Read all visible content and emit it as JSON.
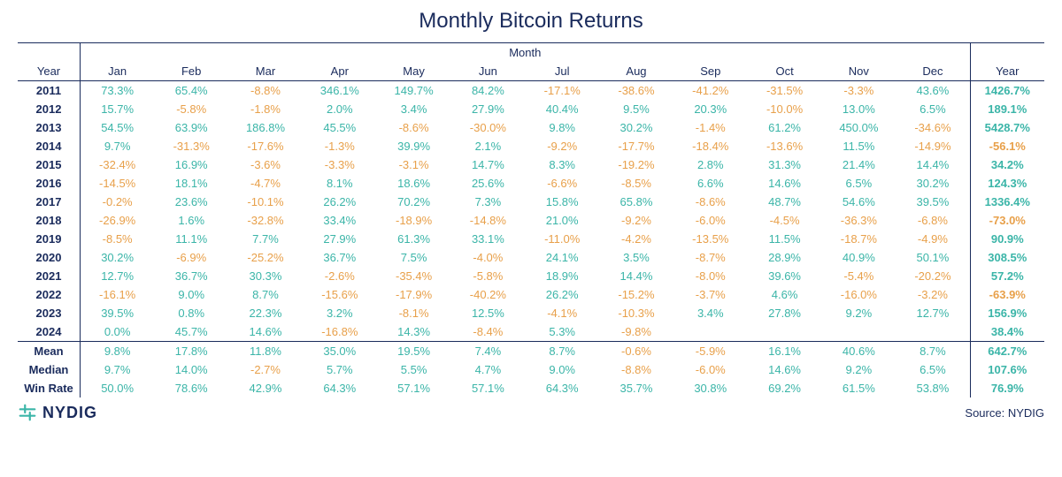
{
  "title": "Monthly Bitcoin Returns",
  "headers": {
    "year": "Year",
    "month_super": "Month",
    "months": [
      "Jan",
      "Feb",
      "Mar",
      "Apr",
      "May",
      "Jun",
      "Jul",
      "Aug",
      "Sep",
      "Oct",
      "Nov",
      "Dec"
    ],
    "total": "Year"
  },
  "colors": {
    "positive": "#3bb5a8",
    "negative": "#e8a04a",
    "header": "#1a2b5c",
    "rule": "#1a2b5c",
    "background": "#ffffff"
  },
  "typography": {
    "title_fontsize_pt": 18,
    "cell_fontsize_pt": 10,
    "font_family": "Arial"
  },
  "years": [
    {
      "y": "2011",
      "m": [
        73.3,
        65.4,
        -8.8,
        346.1,
        149.7,
        84.2,
        -17.1,
        -38.6,
        -41.2,
        -31.5,
        -3.3,
        43.6
      ],
      "t": 1426.7
    },
    {
      "y": "2012",
      "m": [
        15.7,
        -5.8,
        -1.8,
        2.0,
        3.4,
        27.9,
        40.4,
        9.5,
        20.3,
        -10.0,
        13.0,
        6.5
      ],
      "t": 189.1
    },
    {
      "y": "2013",
      "m": [
        54.5,
        63.9,
        186.8,
        45.5,
        -8.6,
        -30.0,
        9.8,
        30.2,
        -1.4,
        61.2,
        450.0,
        -34.6
      ],
      "t": 5428.7
    },
    {
      "y": "2014",
      "m": [
        9.7,
        -31.3,
        -17.6,
        -1.3,
        39.9,
        2.1,
        -9.2,
        -17.7,
        -18.4,
        -13.6,
        11.5,
        -14.9
      ],
      "t": -56.1
    },
    {
      "y": "2015",
      "m": [
        -32.4,
        16.9,
        -3.6,
        -3.3,
        -3.1,
        14.7,
        8.3,
        -19.2,
        2.8,
        31.3,
        21.4,
        14.4
      ],
      "t": 34.2
    },
    {
      "y": "2016",
      "m": [
        -14.5,
        18.1,
        -4.7,
        8.1,
        18.6,
        25.6,
        -6.6,
        -8.5,
        6.6,
        14.6,
        6.5,
        30.2
      ],
      "t": 124.3
    },
    {
      "y": "2017",
      "m": [
        -0.2,
        23.6,
        -10.1,
        26.2,
        70.2,
        7.3,
        15.8,
        65.8,
        -8.6,
        48.7,
        54.6,
        39.5
      ],
      "t": 1336.4
    },
    {
      "y": "2018",
      "m": [
        -26.9,
        1.6,
        -32.8,
        33.4,
        -18.9,
        -14.8,
        21.0,
        -9.2,
        -6.0,
        -4.5,
        -36.3,
        -6.8
      ],
      "t": -73.0
    },
    {
      "y": "2019",
      "m": [
        -8.5,
        11.1,
        7.7,
        27.9,
        61.3,
        33.1,
        -11.0,
        -4.2,
        -13.5,
        11.5,
        -18.7,
        -4.9
      ],
      "t": 90.9
    },
    {
      "y": "2020",
      "m": [
        30.2,
        -6.9,
        -25.2,
        36.7,
        7.5,
        -4.0,
        24.1,
        3.5,
        -8.7,
        28.9,
        40.9,
        50.1
      ],
      "t": 308.5
    },
    {
      "y": "2021",
      "m": [
        12.7,
        36.7,
        30.3,
        -2.6,
        -35.4,
        -5.8,
        18.9,
        14.4,
        -8.0,
        39.6,
        -5.4,
        -20.2
      ],
      "t": 57.2
    },
    {
      "y": "2022",
      "m": [
        -16.1,
        9.0,
        8.7,
        -15.6,
        -17.9,
        -40.2,
        26.2,
        -15.2,
        -3.7,
        4.6,
        -16.0,
        -3.2
      ],
      "t": -63.9
    },
    {
      "y": "2023",
      "m": [
        39.5,
        0.8,
        22.3,
        3.2,
        -8.1,
        12.5,
        -4.1,
        -10.3,
        3.4,
        27.8,
        9.2,
        12.7
      ],
      "t": 156.9
    },
    {
      "y": "2024",
      "m": [
        0.0,
        45.7,
        14.6,
        -16.8,
        14.3,
        -8.4,
        5.3,
        -9.8,
        null,
        null,
        null,
        null
      ],
      "t": 38.4
    }
  ],
  "summary": [
    {
      "label": "Mean",
      "m": [
        9.8,
        17.8,
        11.8,
        35.0,
        19.5,
        7.4,
        8.7,
        -0.6,
        -5.9,
        16.1,
        40.6,
        8.7
      ],
      "t": 642.7
    },
    {
      "label": "Median",
      "m": [
        9.7,
        14.0,
        -2.7,
        5.7,
        5.5,
        4.7,
        9.0,
        -8.8,
        -6.0,
        14.6,
        9.2,
        6.5
      ],
      "t": 107.6
    },
    {
      "label": "Win Rate",
      "m": [
        50.0,
        78.6,
        42.9,
        64.3,
        57.1,
        57.1,
        64.3,
        35.7,
        30.8,
        69.2,
        61.5,
        53.8
      ],
      "t": 76.9
    }
  ],
  "footer": {
    "logo_text": "NYDIG",
    "source": "Source: NYDIG"
  }
}
